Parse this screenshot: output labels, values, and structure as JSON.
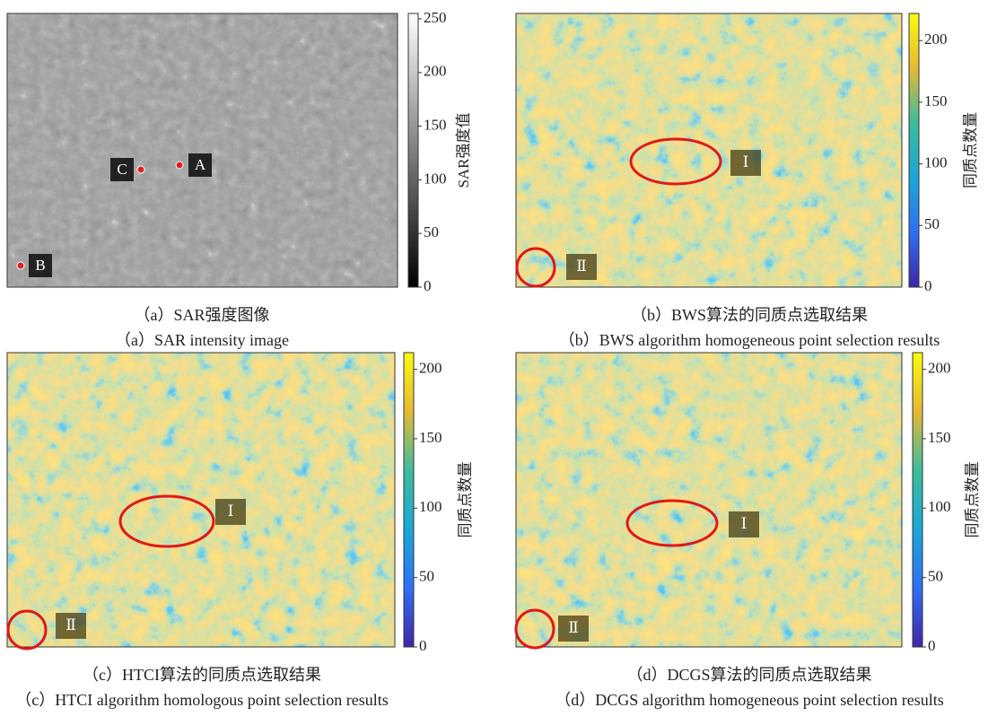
{
  "panels": [
    {
      "caption_cn": "（a）SAR强度图像",
      "caption_en": "（a）SAR intensity image",
      "colorbar": {
        "label": "SAR强度值",
        "colormap": "gray",
        "lim": [
          0,
          255
        ],
        "ticks": [
          0,
          50,
          100,
          150,
          200,
          250
        ]
      },
      "markers": [
        "A",
        "B",
        "C"
      ]
    },
    {
      "caption_cn": "（b）BWS算法的同质点选取结果",
      "caption_en": "（b）BWS algorithm homogeneous point selection results",
      "colorbar": {
        "label": "同质点数量",
        "colormap": "parula",
        "lim": [
          0,
          222
        ],
        "ticks": [
          0,
          50,
          100,
          150,
          200
        ]
      },
      "markers": [
        "Ⅰ",
        "Ⅱ"
      ]
    },
    {
      "caption_cn": "（c）HTCI算法的同质点选取结果",
      "caption_en": "（c）HTCI algorithm homologous point selection results",
      "colorbar": {
        "label": "同质点数量",
        "colormap": "parula",
        "lim": [
          0,
          212
        ],
        "ticks": [
          0,
          50,
          100,
          150,
          200
        ]
      },
      "markers": [
        "Ⅰ",
        "Ⅱ"
      ]
    },
    {
      "caption_cn": "（d）DCGS算法的同质点选取结果",
      "caption_en": "（d）DCGS algorithm homogeneous point selection results",
      "colorbar": {
        "label": "同质点数量",
        "colormap": "parula",
        "lim": [
          0,
          212
        ],
        "ticks": [
          0,
          50,
          100,
          150,
          200
        ]
      },
      "markers": [
        "Ⅰ",
        "Ⅱ"
      ]
    }
  ]
}
